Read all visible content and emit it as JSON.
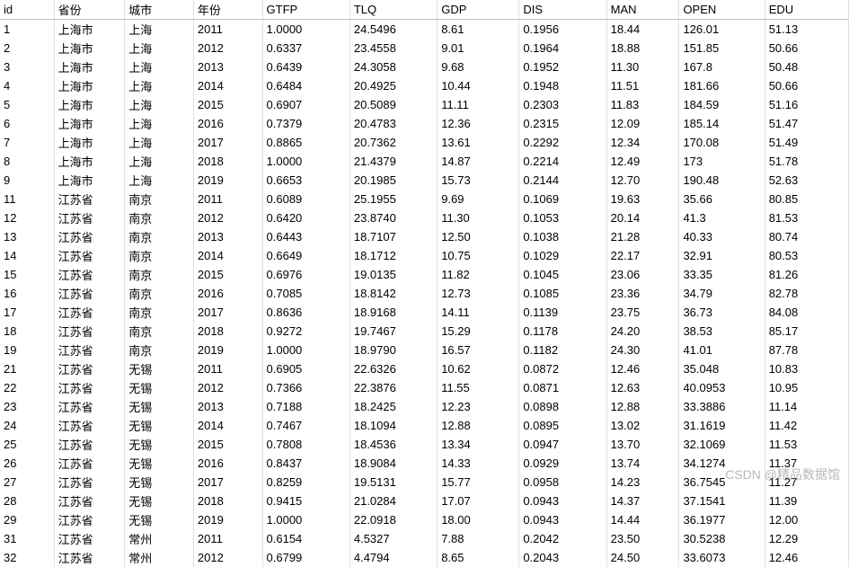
{
  "columns": [
    "id",
    "省份",
    "城市",
    "年份",
    "GTFP",
    "TLQ",
    "GDP",
    "DIS",
    "MAN",
    "OPEN",
    "EDU"
  ],
  "col_classes": [
    "col-id",
    "col-prov",
    "col-city",
    "col-year",
    "col-gtfp",
    "col-tlq",
    "col-gdp",
    "col-dis",
    "col-man",
    "col-open",
    "col-edu"
  ],
  "rows": [
    [
      "1",
      "上海市",
      "上海",
      "2011",
      "1.0000",
      "24.5496",
      "8.61",
      "0.1956",
      "18.44",
      "126.01",
      "51.13"
    ],
    [
      "2",
      "上海市",
      "上海",
      "2012",
      "0.6337",
      "23.4558",
      "9.01",
      "0.1964",
      "18.88",
      "151.85",
      "50.66"
    ],
    [
      "3",
      "上海市",
      "上海",
      "2013",
      "0.6439",
      "24.3058",
      "9.68",
      "0.1952",
      "11.30",
      "167.8",
      "50.48"
    ],
    [
      "4",
      "上海市",
      "上海",
      "2014",
      "0.6484",
      "20.4925",
      "10.44",
      "0.1948",
      "11.51",
      "181.66",
      "50.66"
    ],
    [
      "5",
      "上海市",
      "上海",
      "2015",
      "0.6907",
      "20.5089",
      "11.11",
      "0.2303",
      "11.83",
      "184.59",
      "51.16"
    ],
    [
      "6",
      "上海市",
      "上海",
      "2016",
      "0.7379",
      "20.4783",
      "12.36",
      "0.2315",
      "12.09",
      "185.14",
      "51.47"
    ],
    [
      "7",
      "上海市",
      "上海",
      "2017",
      "0.8865",
      "20.7362",
      "13.61",
      "0.2292",
      "12.34",
      "170.08",
      "51.49"
    ],
    [
      "8",
      "上海市",
      "上海",
      "2018",
      "1.0000",
      "21.4379",
      "14.87",
      "0.2214",
      "12.49",
      "173",
      "51.78"
    ],
    [
      "9",
      "上海市",
      "上海",
      "2019",
      "0.6653",
      "20.1985",
      "15.73",
      "0.2144",
      "12.70",
      "190.48",
      "52.63"
    ],
    [
      "11",
      "江苏省",
      "南京",
      "2011",
      "0.6089",
      "25.1955",
      "9.69",
      "0.1069",
      "19.63",
      "35.66",
      "80.85"
    ],
    [
      "12",
      "江苏省",
      "南京",
      "2012",
      "0.6420",
      "23.8740",
      "11.30",
      "0.1053",
      "20.14",
      "41.3",
      "81.53"
    ],
    [
      "13",
      "江苏省",
      "南京",
      "2013",
      "0.6443",
      "18.7107",
      "12.50",
      "0.1038",
      "21.28",
      "40.33",
      "80.74"
    ],
    [
      "14",
      "江苏省",
      "南京",
      "2014",
      "0.6649",
      "18.1712",
      "10.75",
      "0.1029",
      "22.17",
      "32.91",
      "80.53"
    ],
    [
      "15",
      "江苏省",
      "南京",
      "2015",
      "0.6976",
      "19.0135",
      "11.82",
      "0.1045",
      "23.06",
      "33.35",
      "81.26"
    ],
    [
      "16",
      "江苏省",
      "南京",
      "2016",
      "0.7085",
      "18.8142",
      "12.73",
      "0.1085",
      "23.36",
      "34.79",
      "82.78"
    ],
    [
      "17",
      "江苏省",
      "南京",
      "2017",
      "0.8636",
      "18.9168",
      "14.11",
      "0.1139",
      "23.75",
      "36.73",
      "84.08"
    ],
    [
      "18",
      "江苏省",
      "南京",
      "2018",
      "0.9272",
      "19.7467",
      "15.29",
      "0.1178",
      "24.20",
      "38.53",
      "85.17"
    ],
    [
      "19",
      "江苏省",
      "南京",
      "2019",
      "1.0000",
      "18.9790",
      "16.57",
      "0.1182",
      "24.30",
      "41.01",
      "87.78"
    ],
    [
      "21",
      "江苏省",
      "无锡",
      "2011",
      "0.6905",
      "22.6326",
      "10.62",
      "0.0872",
      "12.46",
      "35.048",
      "10.83"
    ],
    [
      "22",
      "江苏省",
      "无锡",
      "2012",
      "0.7366",
      "22.3876",
      "11.55",
      "0.0871",
      "12.63",
      "40.0953",
      "10.95"
    ],
    [
      "23",
      "江苏省",
      "无锡",
      "2013",
      "0.7188",
      "18.2425",
      "12.23",
      "0.0898",
      "12.88",
      "33.3886",
      "11.14"
    ],
    [
      "24",
      "江苏省",
      "无锡",
      "2014",
      "0.7467",
      "18.1094",
      "12.88",
      "0.0895",
      "13.02",
      "31.1619",
      "11.42"
    ],
    [
      "25",
      "江苏省",
      "无锡",
      "2015",
      "0.7808",
      "18.4536",
      "13.34",
      "0.0947",
      "13.70",
      "32.1069",
      "11.53"
    ],
    [
      "26",
      "江苏省",
      "无锡",
      "2016",
      "0.8437",
      "18.9084",
      "14.33",
      "0.0929",
      "13.74",
      "34.1274",
      "11.37"
    ],
    [
      "27",
      "江苏省",
      "无锡",
      "2017",
      "0.8259",
      "19.5131",
      "15.77",
      "0.0958",
      "14.23",
      "36.7545",
      "11.27"
    ],
    [
      "28",
      "江苏省",
      "无锡",
      "2018",
      "0.9415",
      "21.0284",
      "17.07",
      "0.0943",
      "14.37",
      "37.1541",
      "11.39"
    ],
    [
      "29",
      "江苏省",
      "无锡",
      "2019",
      "1.0000",
      "22.0918",
      "18.00",
      "0.0943",
      "14.44",
      "36.1977",
      "12.00"
    ],
    [
      "31",
      "江苏省",
      "常州",
      "2011",
      "0.6154",
      "4.5327",
      "7.88",
      "0.2042",
      "23.50",
      "30.5238",
      "12.29"
    ],
    [
      "32",
      "江苏省",
      "常州",
      "2012",
      "0.6799",
      "4.4794",
      "8.65",
      "0.2043",
      "24.50",
      "33.6073",
      "12.46"
    ]
  ],
  "watermark": "CSDN @精品数据馆",
  "style": {
    "background_color": "#ffffff",
    "text_color": "#000000",
    "border_color": "#e0e0e0",
    "header_border_color": "#c0c0c0",
    "font_size": 13,
    "row_height": 17.5,
    "watermark_color": "#999999"
  }
}
